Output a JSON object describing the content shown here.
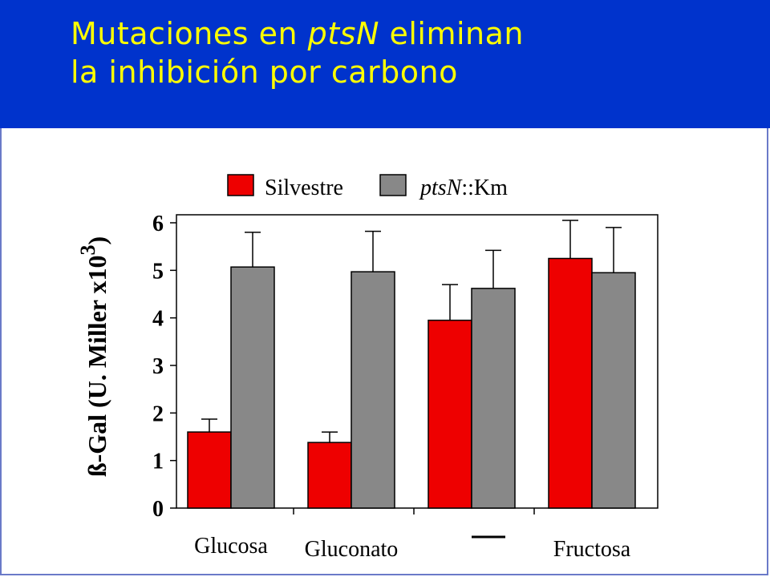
{
  "slide": {
    "title_pre": "Mutaciones en ",
    "title_italic": "ptsN",
    "title_post": " eliminan",
    "title_line2": "la inhibición por carbono"
  },
  "colors": {
    "header_bg": "#0033cc",
    "title_text": "#ffff00",
    "silvestre": "#ee0000",
    "ptsN": "#888888"
  },
  "chart_data": {
    "type": "bar",
    "ylabel": "ß-Gal (U. Miller x10³)",
    "ylabel_main": "ß-Gal (U. Miller x10",
    "ylabel_sup": "3",
    "ylabel_close": ")",
    "ylim": [
      0,
      6
    ],
    "yticks": [
      "0",
      "1",
      "2",
      "3",
      "4",
      "5",
      "6"
    ],
    "grid": false,
    "legend_position": "top",
    "categories": [
      "Glucosa",
      "Gluconato",
      "",
      "Fructosa"
    ],
    "series": [
      {
        "name": "Silvestre",
        "color": "#ee0000",
        "values": [
          1.6,
          1.38,
          3.95,
          5.25
        ],
        "errors": [
          0.27,
          0.22,
          0.75,
          0.8
        ]
      },
      {
        "name_italic": "ptsN",
        "name_rest": "::Km",
        "name": "ptsN::Km",
        "color": "#888888",
        "values": [
          5.07,
          4.97,
          4.62,
          4.95
        ],
        "errors": [
          0.73,
          0.85,
          0.8,
          0.95
        ]
      }
    ]
  }
}
